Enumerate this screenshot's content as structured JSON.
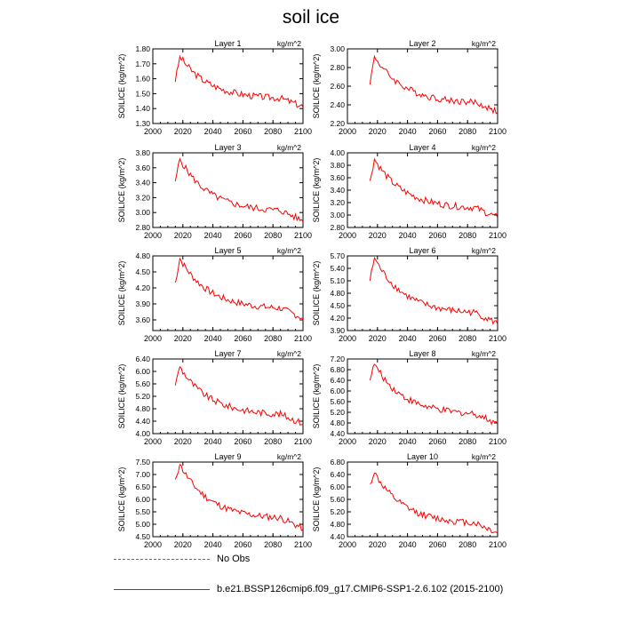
{
  "title": "soil ice",
  "legend": {
    "obs_label": "No Obs",
    "model_label": "b.e21.BSSP126cmip6.f09_g17.CMIP6-SSP1-2.6.102 (2015-2100)",
    "obs_color": "#5a5aff",
    "model_color": "#ff0000"
  },
  "chart_data": [
    {
      "type": "line",
      "title": "Layer 1",
      "units": "kg/m^2",
      "ylabel": "SOILICE  (kg/m^2)",
      "xlim": [
        2000,
        2100
      ],
      "ylim": [
        1.3,
        1.8
      ],
      "xticks": [
        "2000",
        "2020",
        "2040",
        "2060",
        "2080",
        "2100"
      ],
      "yticks": [
        "1.30",
        "1.40",
        "1.50",
        "1.60",
        "1.70",
        "1.80"
      ],
      "y_start": 1.58,
      "y_peak": 1.75,
      "y_end": 1.41
    },
    {
      "type": "line",
      "title": "Layer 2",
      "units": "kg/m^2",
      "ylabel": "SOILICE  (kg/m^2)",
      "xlim": [
        2000,
        2100
      ],
      "ylim": [
        2.2,
        3.0
      ],
      "xticks": [
        "2000",
        "2020",
        "2040",
        "2060",
        "2080",
        "2100"
      ],
      "yticks": [
        "2.20",
        "2.40",
        "2.60",
        "2.80",
        "3.00"
      ],
      "y_start": 2.62,
      "y_peak": 2.92,
      "y_end": 2.32
    },
    {
      "type": "line",
      "title": "Layer 3",
      "units": "kg/m^2",
      "ylabel": "SOILICE  (kg/m^2)",
      "xlim": [
        2000,
        2100
      ],
      "ylim": [
        2.8,
        3.8
      ],
      "xticks": [
        "2000",
        "2020",
        "2040",
        "2060",
        "2080",
        "2100"
      ],
      "yticks": [
        "2.80",
        "3.00",
        "3.20",
        "3.40",
        "3.60",
        "3.80"
      ],
      "y_start": 3.42,
      "y_peak": 3.72,
      "y_end": 2.88
    },
    {
      "type": "line",
      "title": "Layer 4",
      "units": "kg/m^2",
      "ylabel": "SOILICE  (kg/m^2)",
      "xlim": [
        2000,
        2100
      ],
      "ylim": [
        2.8,
        4.0
      ],
      "xticks": [
        "2000",
        "2020",
        "2040",
        "2060",
        "2080",
        "2100"
      ],
      "yticks": [
        "2.80",
        "3.00",
        "3.20",
        "3.40",
        "3.60",
        "3.80",
        "4.00"
      ],
      "y_start": 3.55,
      "y_peak": 3.9,
      "y_end": 2.95
    },
    {
      "type": "line",
      "title": "Layer 5",
      "units": "kg/m^2",
      "ylabel": "SOILICE  (kg/m^2)",
      "xlim": [
        2000,
        2100
      ],
      "ylim": [
        3.4,
        4.8
      ],
      "xticks": [
        "2000",
        "2020",
        "2040",
        "2060",
        "2080",
        "2100"
      ],
      "yticks": [
        "3.60",
        "3.90",
        "4.20",
        "4.50",
        "4.80"
      ],
      "y_start": 4.3,
      "y_peak": 4.75,
      "y_end": 3.62
    },
    {
      "type": "line",
      "title": "Layer 6",
      "units": "kg/m^2",
      "ylabel": "SOILICE  (kg/m^2)",
      "xlim": [
        2000,
        2100
      ],
      "ylim": [
        3.9,
        5.7
      ],
      "xticks": [
        "2000",
        "2020",
        "2040",
        "2060",
        "2080",
        "2100"
      ],
      "yticks": [
        "3.90",
        "4.20",
        "4.50",
        "4.80",
        "5.10",
        "5.40",
        "5.70"
      ],
      "y_start": 5.1,
      "y_peak": 5.65,
      "y_end": 4.05
    },
    {
      "type": "line",
      "title": "Layer 7",
      "units": "kg/m^2",
      "ylabel": "SOILICE  (kg/m^2)",
      "xlim": [
        2000,
        2100
      ],
      "ylim": [
        4.0,
        6.4
      ],
      "xticks": [
        "2000",
        "2020",
        "2040",
        "2060",
        "2080",
        "2100"
      ],
      "yticks": [
        "4.00",
        "4.40",
        "4.80",
        "5.20",
        "5.60",
        "6.00",
        "6.40"
      ],
      "y_start": 5.55,
      "y_peak": 6.15,
      "y_end": 4.3
    },
    {
      "type": "line",
      "title": "Layer 8",
      "units": "kg/m^2",
      "ylabel": "SOILICE  (kg/m^2)",
      "xlim": [
        2000,
        2100
      ],
      "ylim": [
        4.4,
        7.2
      ],
      "xticks": [
        "2000",
        "2020",
        "2040",
        "2060",
        "2080",
        "2100"
      ],
      "yticks": [
        "4.40",
        "4.80",
        "5.20",
        "5.60",
        "6.00",
        "6.40",
        "6.80",
        "7.20"
      ],
      "y_start": 6.4,
      "y_peak": 7.0,
      "y_end": 4.75
    },
    {
      "type": "line",
      "title": "Layer 9",
      "units": "kg/m^2",
      "ylabel": "SOILICE  (kg/m^2)",
      "xlim": [
        2000,
        2100
      ],
      "ylim": [
        4.5,
        7.5
      ],
      "xticks": [
        "2000",
        "2020",
        "2040",
        "2060",
        "2080",
        "2100"
      ],
      "yticks": [
        "4.50",
        "5.00",
        "5.50",
        "6.00",
        "6.50",
        "7.00",
        "7.50"
      ],
      "y_start": 6.8,
      "y_peak": 7.4,
      "y_end": 4.8
    },
    {
      "type": "line",
      "title": "Layer 10",
      "units": "kg/m^2",
      "ylabel": "SOILICE  (kg/m^2)",
      "xlim": [
        2000,
        2100
      ],
      "ylim": [
        4.4,
        6.8
      ],
      "xticks": [
        "2000",
        "2020",
        "2040",
        "2060",
        "2080",
        "2100"
      ],
      "yticks": [
        "4.40",
        "4.80",
        "5.20",
        "5.60",
        "6.00",
        "6.40",
        "6.80"
      ],
      "y_start": 6.1,
      "y_peak": 6.45,
      "y_end": 4.5
    }
  ]
}
